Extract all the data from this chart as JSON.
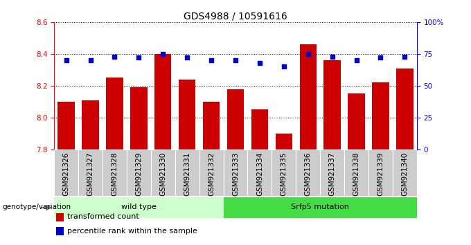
{
  "title": "GDS4988 / 10591616",
  "samples": [
    "GSM921326",
    "GSM921327",
    "GSM921328",
    "GSM921329",
    "GSM921330",
    "GSM921331",
    "GSM921332",
    "GSM921333",
    "GSM921334",
    "GSM921335",
    "GSM921336",
    "GSM921337",
    "GSM921338",
    "GSM921339",
    "GSM921340"
  ],
  "bar_values": [
    8.1,
    8.11,
    8.25,
    8.19,
    8.4,
    8.24,
    8.1,
    8.18,
    8.05,
    7.9,
    8.46,
    8.36,
    8.15,
    8.22,
    8.31
  ],
  "dot_values": [
    70,
    70,
    73,
    72,
    75,
    72,
    70,
    70,
    68,
    65,
    75,
    73,
    70,
    72,
    73
  ],
  "ylim": [
    7.8,
    8.6
  ],
  "y2lim": [
    0,
    100
  ],
  "yticks": [
    7.8,
    8.0,
    8.2,
    8.4,
    8.6
  ],
  "y2ticks": [
    0,
    25,
    50,
    75,
    100
  ],
  "y2ticklabels": [
    "0",
    "25",
    "50",
    "75",
    "100%"
  ],
  "bar_color": "#cc0000",
  "dot_color": "#0000cc",
  "bar_width": 0.7,
  "groups": [
    {
      "label": "wild type",
      "start": 0,
      "end": 6,
      "color": "#ccffcc"
    },
    {
      "label": "Srfp5 mutation",
      "start": 7,
      "end": 14,
      "color": "#44dd44"
    }
  ],
  "legend_items": [
    {
      "label": "transformed count",
      "color": "#cc0000"
    },
    {
      "label": "percentile rank within the sample",
      "color": "#0000cc"
    }
  ],
  "genotype_label": "genotype/variation",
  "tick_bg_color": "#cccccc",
  "title_fontsize": 10,
  "tick_fontsize": 7.5,
  "legend_fontsize": 8
}
